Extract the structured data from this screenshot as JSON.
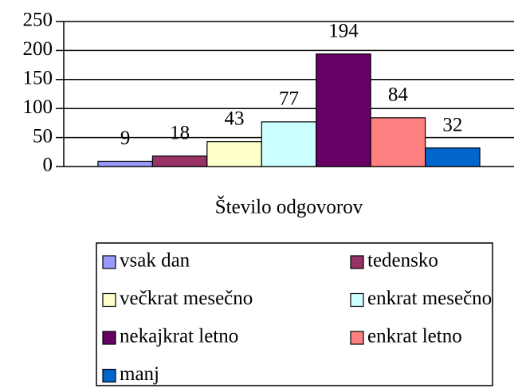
{
  "chart_data": {
    "type": "bar",
    "categories": [
      "Število odgovorov"
    ],
    "series": [
      {
        "name": "vsak dan",
        "color": "#9999ff",
        "values": [
          9
        ]
      },
      {
        "name": "tedensko",
        "color": "#993366",
        "values": [
          18
        ]
      },
      {
        "name": "večkrat mesečno",
        "color": "#ffffcc",
        "values": [
          43
        ]
      },
      {
        "name": "enkrat mesečno",
        "color": "#ccffff",
        "values": [
          77
        ]
      },
      {
        "name": "nekajkrat letno",
        "color": "#660066",
        "values": [
          194
        ]
      },
      {
        "name": "enkrat letno",
        "color": "#ff8080",
        "values": [
          84
        ]
      },
      {
        "name": "manj",
        "color": "#0066cc",
        "values": [
          32
        ]
      }
    ],
    "ylim": [
      0,
      250
    ],
    "yticks": [
      0,
      50,
      100,
      150,
      200,
      250
    ],
    "grid": true,
    "legend": "bottom"
  }
}
